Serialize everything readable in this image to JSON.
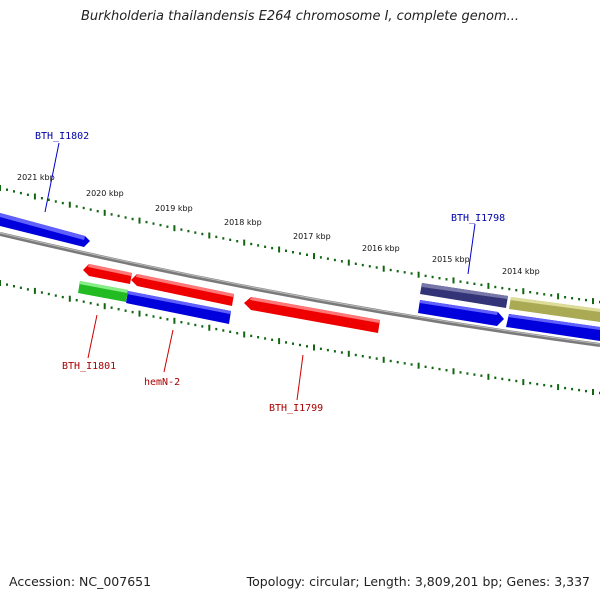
{
  "title": "Burkholderia thailandensis E264 chromosome I, complete genom...",
  "footer": {
    "accession": "Accession: NC_007651",
    "summary": "Topology: circular; Length: 3,809,201 bp; Genes: 3,337"
  },
  "scale_labels": [
    "2021 kbp",
    "2020 kbp",
    "2019 kbp",
    "2018 kbp",
    "2017 kbp",
    "2016 kbp",
    "2015 kbp",
    "2014 kbp"
  ],
  "gene_labels": {
    "BTH_I1802": "BTH_I1802",
    "BTH_I1798": "BTH_I1798",
    "BTH_I1801": "BTH_I1801",
    "hemN_2": "hemN-2",
    "BTH_I1799": "BTH_I1799"
  },
  "colors": {
    "blue": "#0000dd",
    "red": "#ee0000",
    "green": "#22bb22",
    "navy": "#333377",
    "olive": "#aaaa55",
    "tick_green": "#116611",
    "backbone": "#888888",
    "label_blue": "#0000aa",
    "label_red": "#aa0000"
  }
}
